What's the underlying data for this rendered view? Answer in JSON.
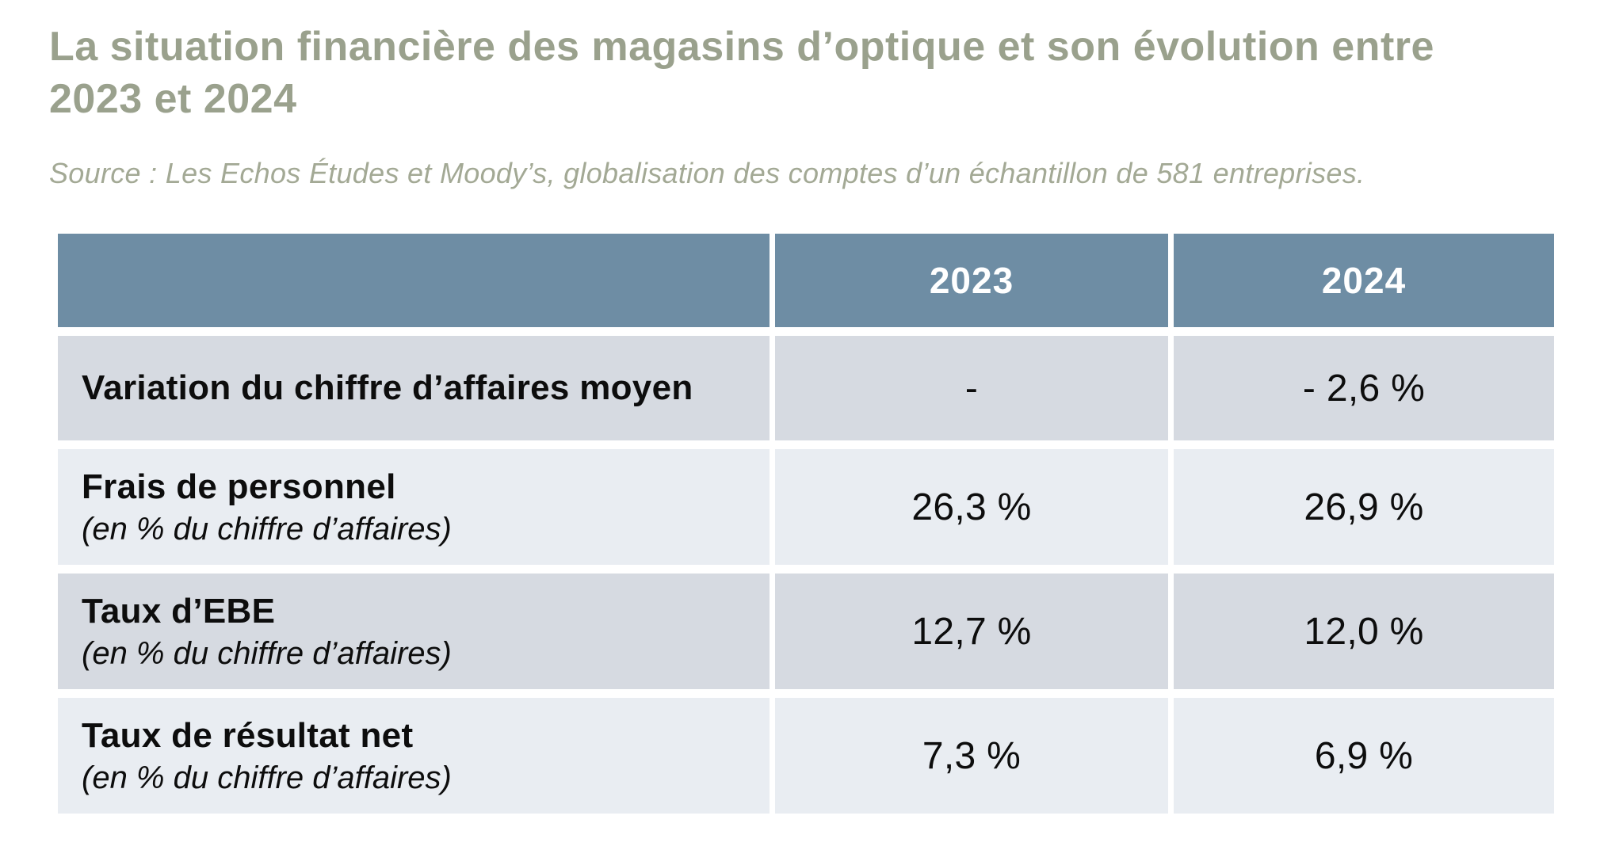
{
  "colors": {
    "title_text": "#9aa18d",
    "source_text": "#a3a995",
    "table_header_bg": "#6e8da4",
    "table_header_text": "#ffffff",
    "row_dark_bg": "#d6dae1",
    "row_light_bg": "#e9edf2",
    "body_text": "#0d0d0d",
    "page_bg": "#ffffff"
  },
  "header": {
    "title_lines": [
      "La situation financière des magasins d’optique et son évolution entre",
      "2023 et 2024"
    ],
    "title_full": "La situation financière des magasins d’optique et son évolution entre 2023 et 2024",
    "source": "Source : Les Echos Études et Moody’s, globalisation des comptes d’un échantillon de 581 entreprises."
  },
  "table": {
    "columns": [
      "",
      "2023",
      "2024"
    ],
    "rows": [
      {
        "label": "Variation du chiffre d’affaires moyen",
        "sublabel": "",
        "values": [
          "-",
          "- 2,6 %"
        ]
      },
      {
        "label": "Frais de personnel",
        "sublabel": "(en % du chiffre d’affaires)",
        "values": [
          "26,3 %",
          "26,9 %"
        ]
      },
      {
        "label": "Taux d’EBE",
        "sublabel": "(en % du chiffre d’affaires)",
        "values": [
          "12,7 %",
          "12,0 %"
        ]
      },
      {
        "label": "Taux de résultat net",
        "sublabel": "(en % du chiffre d’affaires)",
        "values": [
          "7,3 %",
          "6,9 %"
        ]
      }
    ]
  },
  "chart_data": {
    "type": "table",
    "title": "La situation financière des magasins d’optique et son évolution entre 2023 et 2024",
    "source": "Source : Les Echos Études et Moody’s, globalisation des comptes d’un échantillon de 581 entreprises.",
    "columns": [
      "",
      "2023",
      "2024"
    ],
    "rows": [
      [
        "Variation du chiffre d’affaires moyen",
        "-",
        "- 2,6 %"
      ],
      [
        "Frais de personnel (en % du chiffre d’affaires)",
        "26,3 %",
        "26,9 %"
      ],
      [
        "Taux d’EBE (en % du chiffre d’affaires)",
        "12,7 %",
        "12,0 %"
      ],
      [
        "Taux de résultat net (en % du chiffre d’affaires)",
        "7,3 %",
        "6,9 %"
      ]
    ],
    "notes": "Values as percentages with French decimal commas; 2023 column has no value for revenue variation."
  }
}
